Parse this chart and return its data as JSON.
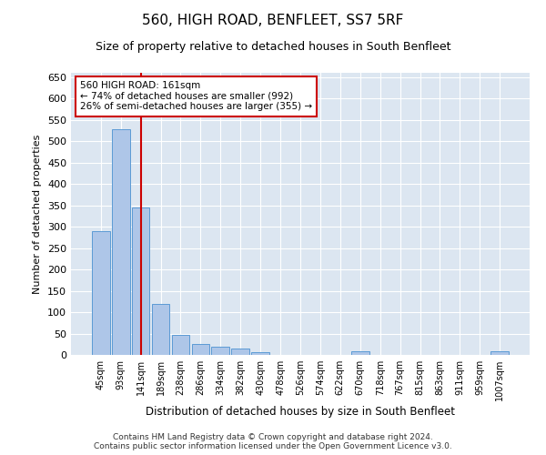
{
  "title": "560, HIGH ROAD, BENFLEET, SS7 5RF",
  "subtitle": "Size of property relative to detached houses in South Benfleet",
  "xlabel": "Distribution of detached houses by size in South Benfleet",
  "ylabel": "Number of detached properties",
  "footer_line1": "Contains HM Land Registry data © Crown copyright and database right 2024.",
  "footer_line2": "Contains public sector information licensed under the Open Government Licence v3.0.",
  "annotation_line1": "560 HIGH ROAD: 161sqm",
  "annotation_line2": "← 74% of detached houses are smaller (992)",
  "annotation_line3": "26% of semi-detached houses are larger (355) →",
  "bar_color": "#aec6e8",
  "bar_edge_color": "#5b9bd5",
  "marker_line_color": "#cc0000",
  "background_color": "#dce6f1",
  "categories": [
    "45sqm",
    "93sqm",
    "141sqm",
    "189sqm",
    "238sqm",
    "286sqm",
    "334sqm",
    "382sqm",
    "430sqm",
    "478sqm",
    "526sqm",
    "574sqm",
    "622sqm",
    "670sqm",
    "718sqm",
    "767sqm",
    "815sqm",
    "863sqm",
    "911sqm",
    "959sqm",
    "1007sqm"
  ],
  "values": [
    290,
    527,
    345,
    120,
    46,
    26,
    20,
    15,
    7,
    0,
    0,
    0,
    0,
    8,
    0,
    0,
    0,
    0,
    0,
    0,
    8
  ],
  "marker_bin_index": 2,
  "ylim": [
    0,
    660
  ],
  "yticks": [
    0,
    50,
    100,
    150,
    200,
    250,
    300,
    350,
    400,
    450,
    500,
    550,
    600,
    650
  ]
}
